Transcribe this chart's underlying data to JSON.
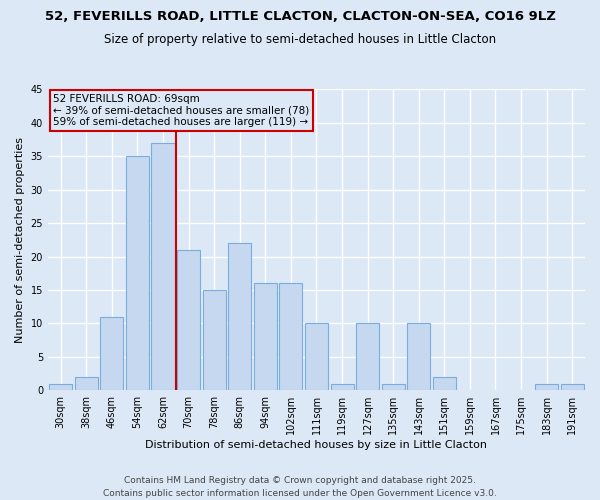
{
  "title_line1": "52, FEVERILLS ROAD, LITTLE CLACTON, CLACTON-ON-SEA, CO16 9LZ",
  "title_line2": "Size of property relative to semi-detached houses in Little Clacton",
  "xlabel": "Distribution of semi-detached houses by size in Little Clacton",
  "ylabel": "Number of semi-detached properties",
  "categories": [
    "30sqm",
    "38sqm",
    "46sqm",
    "54sqm",
    "62sqm",
    "70sqm",
    "78sqm",
    "86sqm",
    "94sqm",
    "102sqm",
    "111sqm",
    "119sqm",
    "127sqm",
    "135sqm",
    "143sqm",
    "151sqm",
    "159sqm",
    "167sqm",
    "175sqm",
    "183sqm",
    "191sqm"
  ],
  "values": [
    1,
    2,
    11,
    35,
    37,
    21,
    15,
    22,
    16,
    16,
    10,
    1,
    10,
    1,
    10,
    2,
    0,
    0,
    0,
    1,
    1
  ],
  "bar_color": "#c5d8f0",
  "bar_edge_color": "#7aaddb",
  "property_label": "52 FEVERILLS ROAD: 69sqm",
  "annotation_line1": "← 39% of semi-detached houses are smaller (78)",
  "annotation_line2": "59% of semi-detached houses are larger (119) →",
  "vline_color": "#cc0000",
  "ylim": [
    0,
    45
  ],
  "yticks": [
    0,
    5,
    10,
    15,
    20,
    25,
    30,
    35,
    40,
    45
  ],
  "background_color": "#dce8f5",
  "grid_color": "#ffffff",
  "footer_line1": "Contains HM Land Registry data © Crown copyright and database right 2025.",
  "footer_line2": "Contains public sector information licensed under the Open Government Licence v3.0.",
  "title_fontsize": 9.5,
  "subtitle_fontsize": 8.5,
  "axis_label_fontsize": 8,
  "tick_fontsize": 7,
  "annotation_fontsize": 7.5,
  "footer_fontsize": 6.5
}
